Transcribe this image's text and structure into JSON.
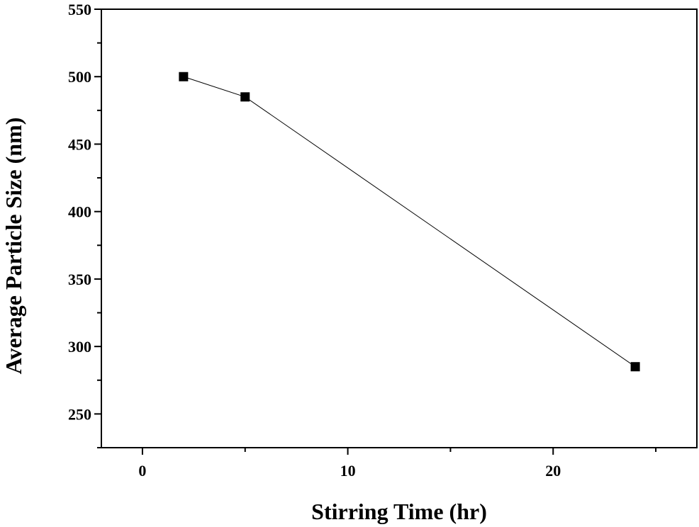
{
  "chart_data": {
    "type": "line",
    "title": "",
    "xlabel": "Stirring Time (hr)",
    "ylabel": "Average Particle Size (nm)",
    "xlim": [
      -2,
      27
    ],
    "ylim": [
      225,
      550
    ],
    "xticks": [
      0,
      10,
      20
    ],
    "yticks": [
      250,
      300,
      350,
      400,
      450,
      500,
      550
    ],
    "x_minor_step": 5,
    "y_minor_step": 25,
    "grid": false,
    "legend": "none",
    "marker": "square",
    "color": "#000000",
    "series": [
      {
        "x": [
          2,
          5,
          24
        ],
        "y": [
          500,
          485,
          285
        ]
      }
    ]
  }
}
